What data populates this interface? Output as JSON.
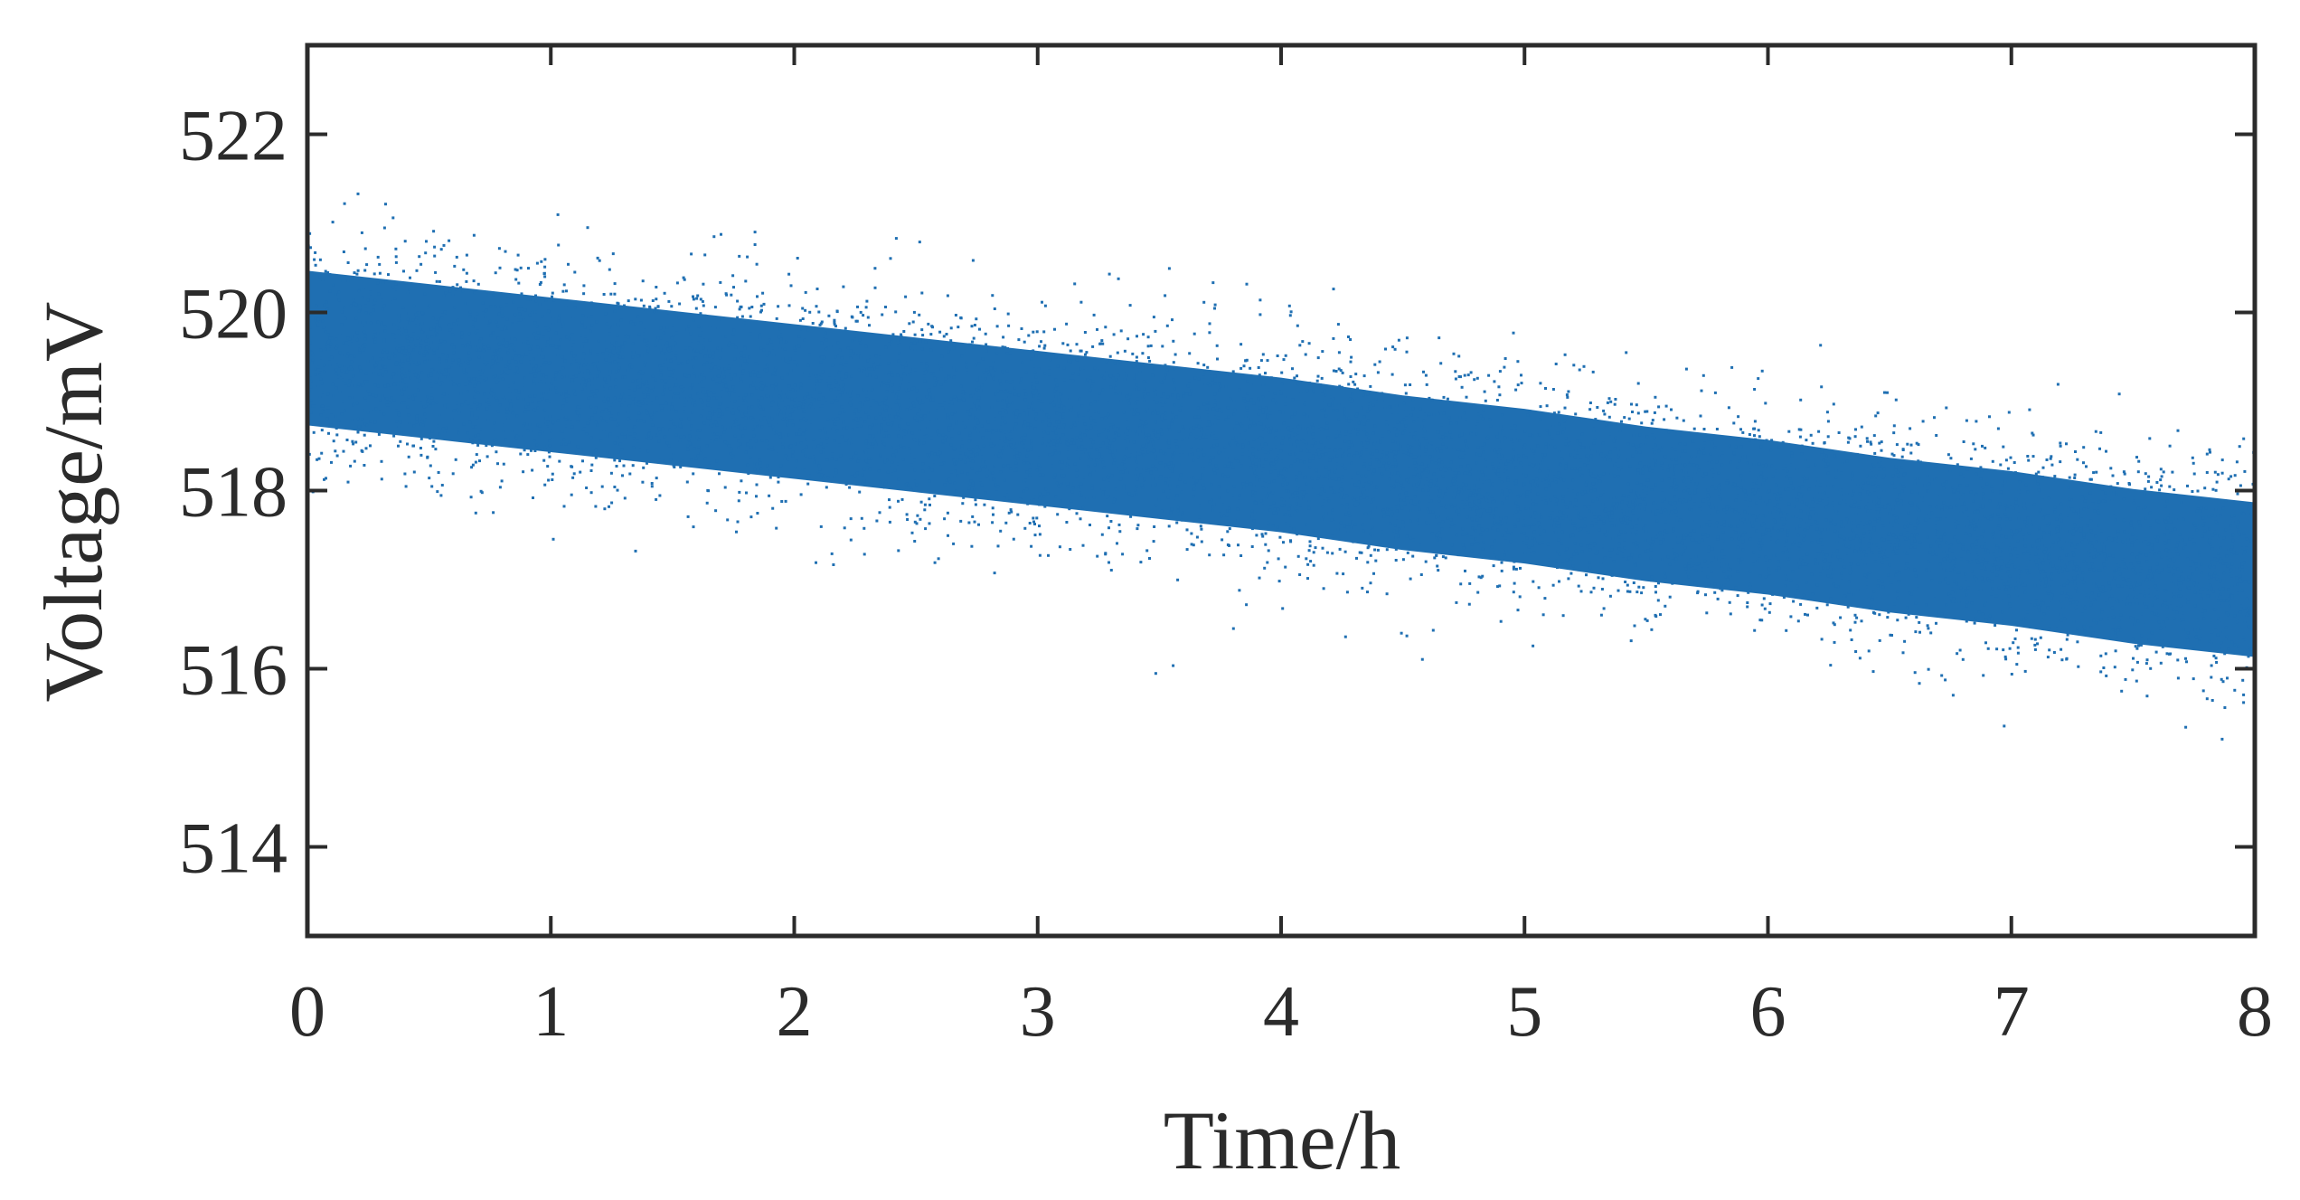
{
  "chart_data": {
    "type": "scatter",
    "title": "",
    "xlabel": "Time/h",
    "ylabel": "Voltage/mV",
    "xlim": [
      0,
      8
    ],
    "ylim": [
      513,
      523
    ],
    "xticks": [
      0,
      1,
      2,
      3,
      4,
      5,
      6,
      7,
      8
    ],
    "xtick_labels": [
      "0",
      "1",
      "2",
      "3",
      "4",
      "5",
      "6",
      "7",
      "8"
    ],
    "yticks": [
      514,
      516,
      518,
      520,
      522
    ],
    "ytick_labels": [
      "514",
      "516",
      "518",
      "520",
      "522"
    ],
    "grid": false,
    "legend": "none",
    "color": "#1f6fb2",
    "series": [
      {
        "x": [
          0,
          0.5,
          1,
          1.5,
          2,
          2.5,
          3,
          3.5,
          4,
          4.5,
          5,
          5.5,
          6,
          6.5,
          7,
          7.5,
          8
        ],
        "y": [
          519.6,
          519.45,
          519.3,
          519.15,
          519.0,
          518.85,
          518.7,
          518.55,
          518.4,
          518.2,
          518.05,
          517.85,
          517.7,
          517.5,
          517.35,
          517.15,
          517.0
        ],
        "y_min": [
          518.2,
          518.05,
          517.9,
          517.75,
          517.6,
          517.45,
          517.3,
          517.15,
          517.0,
          516.8,
          516.65,
          516.45,
          516.3,
          516.1,
          515.95,
          515.75,
          515.6
        ],
        "y_max": [
          521.0,
          520.85,
          520.7,
          520.55,
          520.4,
          520.25,
          520.1,
          519.95,
          519.8,
          519.6,
          519.45,
          519.25,
          519.1,
          518.9,
          518.75,
          518.55,
          518.4
        ]
      }
    ]
  }
}
